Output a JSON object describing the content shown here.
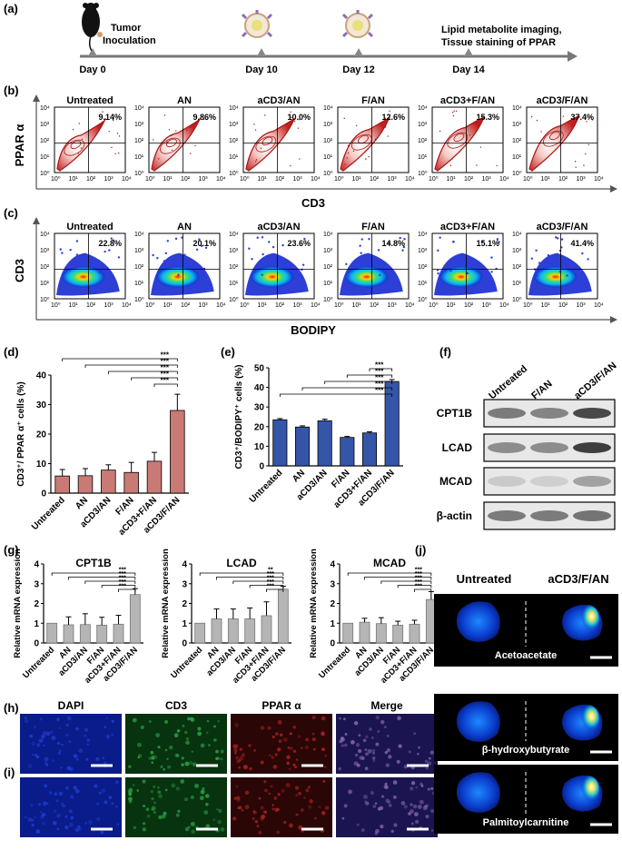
{
  "panels": {
    "a": "(a)",
    "b": "(b)",
    "c": "(c)",
    "d": "(d)",
    "e": "(e)",
    "f": "(f)",
    "g": "(g)",
    "h": "(h)",
    "i": "(i)",
    "j": "(j)"
  },
  "timeline": {
    "days": [
      "Day 0",
      "Day 10",
      "Day 12",
      "Day 14"
    ],
    "inoculation": [
      "Tumor",
      "Inoculation"
    ],
    "endpoint": [
      "Lipid metabolite imaging,",
      "Tissue staining of PPAR"
    ]
  },
  "groups": [
    "Untreated",
    "AN",
    "aCD3/AN",
    "F/AN",
    "aCD3+F/AN",
    "aCD3/F/AN"
  ],
  "flow_b": {
    "ylabel": "PPAR α",
    "xlabel": "CD3",
    "percents": [
      "9.14%",
      "9.86%",
      "10.0%",
      "12.6%",
      "15.3%",
      "37.4%"
    ],
    "decades": [
      "10⁰",
      "10¹",
      "10²",
      "10³",
      "10⁴"
    ]
  },
  "flow_c": {
    "ylabel": "CD3",
    "xlabel": "BODIPY",
    "percents": [
      "22.8%",
      "20.1%",
      "23.6%",
      "14.8%",
      "15.1%",
      "41.4%"
    ]
  },
  "sig": "***",
  "sig_double": "**",
  "western": {
    "lanes": [
      "Untreated",
      "F/AN",
      "aCD3/F/AN"
    ],
    "proteins": [
      "CPT1B",
      "LCAD",
      "MCAD",
      "β-actin"
    ]
  },
  "imaging_h": [
    "DAPI",
    "CD3",
    "PPAR α",
    "Merge"
  ],
  "imaging_j": {
    "conditions": [
      "Untreated",
      "aCD3/F/AN"
    ],
    "metabolites": [
      "Acetoacetate",
      "β-hydroxybutyrate",
      "Palmitoylcarnitine"
    ]
  },
  "colors": {
    "bar_d": "#c97a75",
    "bar_e": "#3555a8",
    "bar_g": "#b5b5b5",
    "flow_red": "#b71c1c",
    "tissue": "#0a2a9a"
  },
  "chart_data": [
    {
      "panel": "d",
      "type": "bar",
      "ylabel": "CD3⁺/ PPAR α⁺ cells (%)",
      "categories": [
        "Untreated",
        "AN",
        "aCD3/AN",
        "F/AN",
        "aCD3+F/AN",
        "aCD3/F/AN"
      ],
      "values": [
        5.8,
        5.9,
        7.8,
        7.0,
        10.8,
        28.0
      ],
      "errors": [
        2.2,
        2.4,
        1.8,
        3.4,
        3.0,
        5.5
      ],
      "ylim": [
        0,
        40
      ],
      "yticks": [
        0,
        10,
        20,
        30,
        40
      ]
    },
    {
      "panel": "e",
      "type": "bar",
      "ylabel": "CD3⁺/BODIPY⁺ cells (%)",
      "categories": [
        "Untreated",
        "AN",
        "aCD3/AN",
        "F/AN",
        "aCD3+F/AN",
        "aCD3/F/AN"
      ],
      "values": [
        23.5,
        19.8,
        23.0,
        14.5,
        16.8,
        43.0
      ],
      "errors": [
        0.6,
        0.6,
        0.8,
        0.5,
        0.6,
        1.0
      ],
      "ylim": [
        0,
        50
      ],
      "yticks": [
        0,
        10,
        20,
        30,
        40,
        50
      ]
    },
    {
      "panel": "g1",
      "type": "bar",
      "title": "CPT1B",
      "ylabel": "Relative mRNA expression",
      "categories": [
        "Untreated",
        "AN",
        "aCD3/AN",
        "F/AN",
        "aCD3+F/AN",
        "aCD3/F/AN"
      ],
      "values": [
        1.0,
        0.92,
        0.93,
        0.9,
        0.95,
        2.45
      ],
      "errors": [
        0.0,
        0.4,
        0.55,
        0.4,
        0.45,
        0.3
      ],
      "ylim": [
        0,
        4
      ],
      "yticks": [
        0,
        1,
        2,
        3,
        4
      ]
    },
    {
      "panel": "g2",
      "type": "bar",
      "title": "LCAD",
      "ylabel": "Relative mRNA expression",
      "categories": [
        "Untreated",
        "AN",
        "aCD3/AN",
        "F/AN",
        "aCD3+F/AN",
        "aCD3/F/AN"
      ],
      "values": [
        1.0,
        1.22,
        1.22,
        1.22,
        1.38,
        2.72
      ],
      "errors": [
        0.0,
        0.5,
        0.5,
        0.55,
        0.7,
        0.15
      ],
      "ylim": [
        0,
        4
      ],
      "yticks": [
        0,
        1,
        2,
        3,
        4
      ]
    },
    {
      "panel": "g3",
      "type": "bar",
      "title": "MCAD",
      "ylabel": "Relative mRNA expression",
      "categories": [
        "Untreated",
        "AN",
        "aCD3/AN",
        "F/AN",
        "aCD3+F/AN",
        "aCD3/F/AN"
      ],
      "values": [
        1.0,
        1.05,
        0.98,
        0.9,
        0.95,
        2.2
      ],
      "errors": [
        0.0,
        0.2,
        0.3,
        0.2,
        0.2,
        0.4
      ],
      "ylim": [
        0,
        4
      ],
      "yticks": [
        0,
        1,
        2,
        3,
        4
      ]
    }
  ]
}
